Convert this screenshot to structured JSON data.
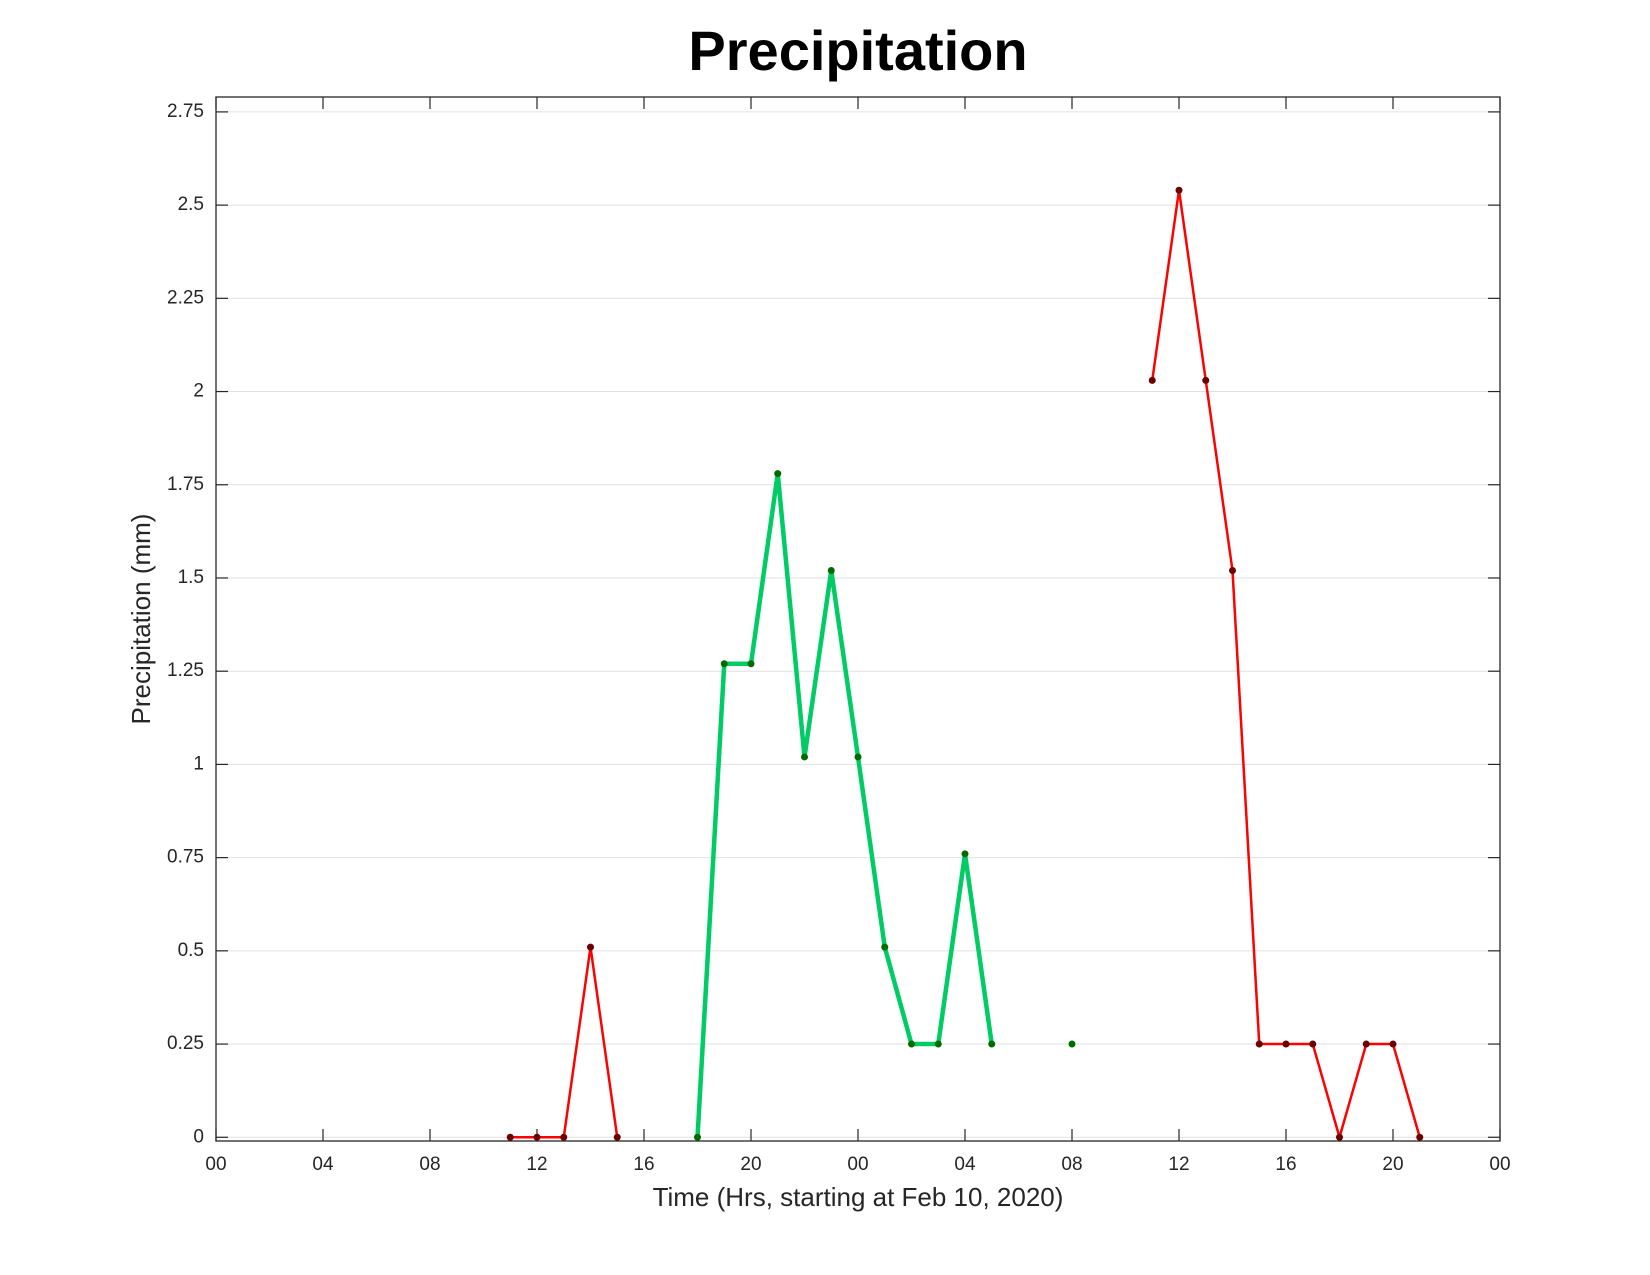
{
  "chart_data": {
    "type": "line",
    "title": "Precipitation",
    "xlabel": "Time (Hrs, starting at Feb 10, 2020)",
    "ylabel": "Precipitation (mm)",
    "x": [
      11,
      12,
      13,
      14,
      15,
      16,
      17,
      18,
      19,
      20,
      21,
      22,
      23,
      24,
      25,
      26,
      27,
      28,
      29,
      30,
      31,
      32,
      33,
      34,
      35,
      36,
      37,
      38,
      39,
      40,
      41,
      42,
      43,
      44,
      45
    ],
    "series": [
      {
        "color": "#ff0000",
        "marker_color": "#6b0000",
        "line_width": 2.5,
        "values": [
          0,
          0,
          0,
          0.51,
          0,
          null,
          null,
          null,
          null,
          null,
          null,
          null,
          null,
          null,
          null,
          null,
          null,
          null,
          null,
          null,
          null,
          null,
          null,
          null,
          2.03,
          2.54,
          2.03,
          1.52,
          0.25,
          0.25,
          0.25,
          0,
          0.25,
          0.25,
          0
        ]
      },
      {
        "color": "#00cc66",
        "marker_color": "#006b00",
        "line_width": 4.5,
        "values": [
          null,
          null,
          null,
          null,
          null,
          null,
          null,
          0,
          1.27,
          1.27,
          1.78,
          1.02,
          1.52,
          1.02,
          0.51,
          0.25,
          0.25,
          0.76,
          0.25,
          null,
          null,
          0.25,
          null,
          null,
          null,
          null,
          null,
          null,
          null,
          null,
          null,
          null,
          null,
          null,
          null
        ]
      }
    ],
    "xlim": [
      0,
      48
    ],
    "xticks": [
      {
        "value": 0,
        "label": "00"
      },
      {
        "value": 4,
        "label": "04"
      },
      {
        "value": 8,
        "label": "08"
      },
      {
        "value": 12,
        "label": "12"
      },
      {
        "value": 16,
        "label": "16"
      },
      {
        "value": 20,
        "label": "20"
      },
      {
        "value": 24,
        "label": "00"
      },
      {
        "value": 28,
        "label": "04"
      },
      {
        "value": 32,
        "label": "08"
      },
      {
        "value": 36,
        "label": "12"
      },
      {
        "value": 40,
        "label": "16"
      },
      {
        "value": 44,
        "label": "20"
      },
      {
        "value": 48,
        "label": "00"
      }
    ],
    "ylim": [
      -0.01,
      2.79
    ],
    "yticks": [
      0,
      0.25,
      0.5,
      0.75,
      1,
      1.25,
      1.5,
      1.75,
      2,
      2.25,
      2.5,
      2.75
    ],
    "ygrid": true
  }
}
